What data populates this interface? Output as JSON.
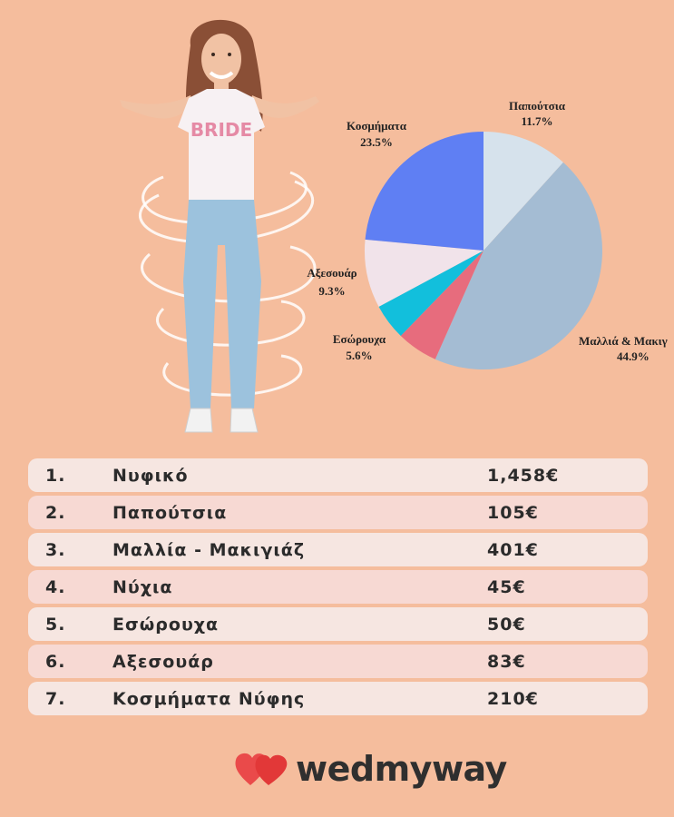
{
  "colors": {
    "background": "#f5bd9d",
    "row_odd": "#f6e6e1",
    "row_even": "#f7d9d3",
    "logo_heart": "#ea4a4a"
  },
  "illustration": {
    "shirt_text": "BRIDE"
  },
  "chart_data": {
    "type": "pie",
    "slices": [
      {
        "label": "Παπούτσια",
        "pct_label": "11.7%",
        "value": 11.7,
        "color": "#d6e2ec"
      },
      {
        "label": "Μαλλιά & Μακιγ",
        "pct_label": "44.9%",
        "value": 44.9,
        "color": "#a4bcd3"
      },
      {
        "label": "Εσώρουχα",
        "pct_label": "5.6%",
        "value": 5.6,
        "color": "#e76c7d"
      },
      {
        "label": "",
        "pct_label": "",
        "value": 4.9,
        "color": "#12bfdc"
      },
      {
        "label": "Αξεσουάρ",
        "pct_label": "9.3%",
        "value": 9.3,
        "color": "#f1e3ea"
      },
      {
        "label": "Κοσμήματα",
        "pct_label": "23.5%",
        "value": 23.5,
        "color": "#5f7ff3"
      }
    ],
    "start_angle_deg": 0,
    "direction": "clockwise",
    "legend": "none"
  },
  "table": {
    "rows": [
      {
        "num": "1.",
        "item": "Νυφικό",
        "price": "1,458€"
      },
      {
        "num": "2.",
        "item": "Παπούτσια",
        "price": "105€"
      },
      {
        "num": "3.",
        "item": "Μαλλία - Μακιγιάζ",
        "price": "401€"
      },
      {
        "num": "4.",
        "item": "Νύχια",
        "price": "45€"
      },
      {
        "num": "5.",
        "item": "Εσώρουχα",
        "price": "50€"
      },
      {
        "num": "6.",
        "item": "Αξεσουάρ",
        "price": "83€"
      },
      {
        "num": "7.",
        "item": "Κοσμήματα Νύφης",
        "price": "210€"
      }
    ]
  },
  "logo": {
    "text": "wedmyway",
    "icon": "double-heart-icon"
  }
}
